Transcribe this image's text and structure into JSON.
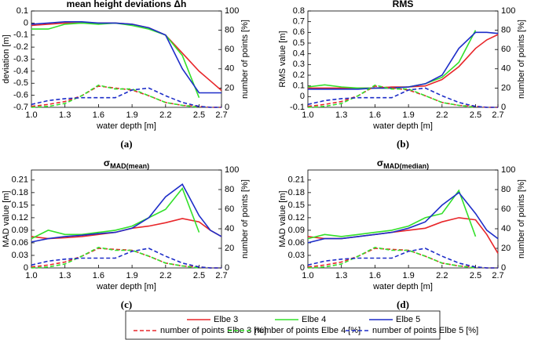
{
  "chart_data": [
    {
      "type": "line",
      "title": "mean height deviations Δh̄",
      "caption": "(a)",
      "xlabel": "water depth [m]",
      "ylabel": "deviation [m]",
      "y2label": "number of points [%]",
      "x": [
        1.0,
        1.15,
        1.3,
        1.45,
        1.6,
        1.75,
        1.9,
        2.05,
        2.2,
        2.35,
        2.5,
        2.6,
        2.7
      ],
      "xlim": [
        1.0,
        2.7
      ],
      "xticks": [
        {
          "value": 1.0,
          "label": "1.0"
        },
        1.3,
        1.6,
        1.9,
        2.2,
        2.5,
        2.7
      ],
      "ylim": [
        -0.7,
        0.1
      ],
      "yticks": [
        0.1,
        0,
        -0.1,
        -0.2,
        -0.3,
        -0.4,
        -0.5,
        -0.6,
        -0.7
      ],
      "y2lim": [
        0,
        100
      ],
      "y2ticks": [
        0,
        20,
        40,
        60,
        80,
        100
      ],
      "series": [
        {
          "name": "Elbe 3",
          "color": "#e8262a",
          "dashed": false,
          "values": [
            -0.02,
            -0.01,
            0,
            0,
            0,
            0,
            -0.01,
            -0.04,
            -0.1,
            -0.25,
            -0.4,
            -0.48,
            -0.56
          ]
        },
        {
          "name": "Elbe 4",
          "color": "#33e02a",
          "dashed": false,
          "values": [
            -0.05,
            -0.05,
            -0.01,
            0,
            -0.01,
            0,
            -0.02,
            -0.05,
            -0.1,
            -0.27,
            -0.62,
            null,
            null
          ]
        },
        {
          "name": "Elbe 5",
          "color": "#1d2dc8",
          "dashed": false,
          "values": [
            -0.01,
            0,
            0.01,
            0.01,
            0,
            0,
            -0.01,
            -0.04,
            -0.1,
            -0.38,
            -0.58,
            -0.58,
            -0.58
          ]
        },
        {
          "name": "number of points Elbe 3 [%]",
          "color": "#e8262a",
          "dashed": true,
          "axis": "y2",
          "values": [
            1,
            3,
            6,
            12,
            22,
            20,
            18,
            12,
            5,
            2,
            1,
            0,
            0
          ]
        },
        {
          "name": "number of points Elbe 4 [%]",
          "color": "#33e02a",
          "dashed": true,
          "axis": "y2",
          "values": [
            0,
            1,
            4,
            12,
            23,
            19,
            19,
            12,
            5,
            2,
            0,
            null,
            null
          ]
        },
        {
          "name": "number of points Elbe 5 [%]",
          "color": "#1d2dc8",
          "dashed": true,
          "axis": "y2",
          "values": [
            3,
            7,
            9,
            10,
            10,
            10,
            18,
            20,
            12,
            5,
            1,
            0,
            0
          ]
        }
      ]
    },
    {
      "type": "line",
      "title": "RMS",
      "caption": "(b)",
      "xlabel": "water depth [m]",
      "ylabel": "RMS value [m]",
      "y2label": "number of points [%]",
      "x": [
        1.0,
        1.15,
        1.3,
        1.45,
        1.6,
        1.75,
        1.9,
        2.05,
        2.2,
        2.35,
        2.5,
        2.6,
        2.7
      ],
      "xlim": [
        1.0,
        2.7
      ],
      "xticks": [
        {
          "value": 1.0,
          "label": "1.0"
        },
        1.3,
        1.6,
        1.9,
        2.2,
        2.5,
        2.7
      ],
      "ylim": [
        -0.1,
        0.8
      ],
      "yticks": [
        -0.1,
        0,
        0.1,
        0.2,
        0.3,
        0.4,
        0.5,
        0.6,
        0.7,
        0.8
      ],
      "y2lim": [
        0,
        100
      ],
      "y2ticks": [
        0,
        20,
        40,
        60,
        80,
        100
      ],
      "series": [
        {
          "name": "Elbe 3",
          "color": "#e8262a",
          "dashed": false,
          "values": [
            0.08,
            0.08,
            0.08,
            0.08,
            0.08,
            0.09,
            0.09,
            0.1,
            0.16,
            0.28,
            0.45,
            0.53,
            0.58
          ]
        },
        {
          "name": "Elbe 4",
          "color": "#33e02a",
          "dashed": false,
          "values": [
            0.09,
            0.11,
            0.09,
            0.08,
            0.08,
            0.08,
            0.09,
            0.12,
            0.18,
            0.32,
            0.62,
            null,
            null
          ]
        },
        {
          "name": "Elbe 5",
          "color": "#1d2dc8",
          "dashed": false,
          "values": [
            0.07,
            0.07,
            0.07,
            0.07,
            0.08,
            0.08,
            0.09,
            0.12,
            0.2,
            0.45,
            0.6,
            0.6,
            0.59
          ]
        },
        {
          "name": "number of points Elbe 3 [%]",
          "color": "#e8262a",
          "dashed": true,
          "axis": "y2",
          "values": [
            1,
            3,
            6,
            12,
            22,
            20,
            18,
            12,
            5,
            2,
            1,
            0,
            0
          ]
        },
        {
          "name": "number of points Elbe 4 [%]",
          "color": "#33e02a",
          "dashed": true,
          "axis": "y2",
          "values": [
            0,
            1,
            4,
            12,
            23,
            19,
            19,
            12,
            5,
            2,
            0,
            null,
            null
          ]
        },
        {
          "name": "number of points Elbe 5 [%]",
          "color": "#1d2dc8",
          "dashed": true,
          "axis": "y2",
          "values": [
            3,
            7,
            9,
            10,
            10,
            10,
            18,
            20,
            12,
            5,
            1,
            0,
            0
          ]
        }
      ]
    },
    {
      "type": "line",
      "title": "σ",
      "title_subscript": "MAD(mean)",
      "caption": "(c)",
      "xlabel": "water depth [m]",
      "ylabel": "MAD value [m]",
      "y2label": "number of points [%]",
      "x": [
        1.0,
        1.15,
        1.3,
        1.45,
        1.6,
        1.75,
        1.9,
        2.05,
        2.2,
        2.35,
        2.5,
        2.6,
        2.7
      ],
      "xlim": [
        1.0,
        2.7
      ],
      "xticks": [
        {
          "value": 1.0,
          "label": "1.0"
        },
        1.3,
        1.6,
        1.9,
        2.2,
        2.5,
        2.7
      ],
      "ylim": [
        0,
        0.234
      ],
      "yticks": [
        0,
        0.03,
        0.06,
        0.09,
        0.12,
        0.15,
        0.18,
        0.21
      ],
      "y2lim": [
        0,
        100
      ],
      "y2ticks": [
        0,
        20,
        40,
        60,
        80,
        100
      ],
      "series": [
        {
          "name": "Elbe 3",
          "color": "#e8262a",
          "dashed": false,
          "values": [
            0.075,
            0.07,
            0.072,
            0.075,
            0.08,
            0.085,
            0.095,
            0.1,
            0.108,
            0.118,
            0.11,
            0.09,
            0.075
          ]
        },
        {
          "name": "Elbe 4",
          "color": "#33e02a",
          "dashed": false,
          "values": [
            0.07,
            0.09,
            0.08,
            0.08,
            0.085,
            0.09,
            0.1,
            0.12,
            0.14,
            0.19,
            0.085,
            null,
            null
          ]
        },
        {
          "name": "Elbe 5",
          "color": "#1d2dc8",
          "dashed": false,
          "values": [
            0.062,
            0.07,
            0.075,
            0.078,
            0.082,
            0.085,
            0.095,
            0.12,
            0.17,
            0.2,
            0.125,
            0.09,
            0.075
          ]
        },
        {
          "name": "number of points Elbe 3 [%]",
          "color": "#e8262a",
          "dashed": true,
          "axis": "y2",
          "values": [
            1,
            3,
            6,
            12,
            20,
            19,
            18,
            12,
            5,
            2,
            1,
            0,
            0
          ]
        },
        {
          "name": "number of points Elbe 4 [%]",
          "color": "#33e02a",
          "dashed": true,
          "axis": "y2",
          "values": [
            0,
            1,
            4,
            12,
            21,
            18,
            18,
            12,
            5,
            2,
            0,
            null,
            null
          ]
        },
        {
          "name": "number of points Elbe 5 [%]",
          "color": "#1d2dc8",
          "dashed": true,
          "axis": "y2",
          "values": [
            3,
            7,
            9,
            10,
            10,
            10,
            17,
            20,
            12,
            5,
            1,
            0,
            0
          ]
        }
      ]
    },
    {
      "type": "line",
      "title": "σ",
      "title_subscript": "MAD(median)",
      "caption": "(d)",
      "xlabel": "water depth [m]",
      "ylabel": "MAD value [m]",
      "y2label": "number of points [%]",
      "x": [
        1.0,
        1.15,
        1.3,
        1.45,
        1.6,
        1.75,
        1.9,
        2.05,
        2.2,
        2.35,
        2.5,
        2.6,
        2.7
      ],
      "xlim": [
        1.0,
        2.7
      ],
      "xticks": [
        {
          "value": 1.0,
          "label": "1.0"
        },
        1.3,
        1.6,
        1.9,
        2.2,
        2.5,
        2.7
      ],
      "ylim": [
        0,
        0.234
      ],
      "yticks": [
        0,
        0.03,
        0.06,
        0.09,
        0.12,
        0.15,
        0.18,
        0.21
      ],
      "y2lim": [
        0,
        100
      ],
      "y2ticks": [
        0,
        20,
        40,
        60,
        80,
        100
      ],
      "series": [
        {
          "name": "Elbe 3",
          "color": "#e8262a",
          "dashed": false,
          "values": [
            0.075,
            0.07,
            0.07,
            0.075,
            0.08,
            0.085,
            0.09,
            0.095,
            0.11,
            0.12,
            0.115,
            0.08,
            0.035
          ]
        },
        {
          "name": "Elbe 4",
          "color": "#33e02a",
          "dashed": false,
          "values": [
            0.07,
            0.08,
            0.075,
            0.08,
            0.085,
            0.09,
            0.1,
            0.12,
            0.13,
            0.185,
            0.075,
            null,
            null
          ]
        },
        {
          "name": "Elbe 5",
          "color": "#1d2dc8",
          "dashed": false,
          "values": [
            0.06,
            0.07,
            0.07,
            0.075,
            0.08,
            0.085,
            0.095,
            0.11,
            0.15,
            0.18,
            0.13,
            0.09,
            0.07
          ]
        },
        {
          "name": "number of points Elbe 3 [%]",
          "color": "#e8262a",
          "dashed": true,
          "axis": "y2",
          "values": [
            1,
            3,
            6,
            12,
            20,
            19,
            18,
            12,
            5,
            2,
            1,
            0,
            0
          ]
        },
        {
          "name": "number of points Elbe 4 [%]",
          "color": "#33e02a",
          "dashed": true,
          "axis": "y2",
          "values": [
            0,
            1,
            4,
            12,
            21,
            18,
            18,
            12,
            5,
            2,
            0,
            null,
            null
          ]
        },
        {
          "name": "number of points Elbe 5 [%]",
          "color": "#1d2dc8",
          "dashed": true,
          "axis": "y2",
          "values": [
            3,
            7,
            9,
            10,
            10,
            10,
            17,
            20,
            12,
            5,
            1,
            0,
            0
          ]
        }
      ]
    }
  ]
}
